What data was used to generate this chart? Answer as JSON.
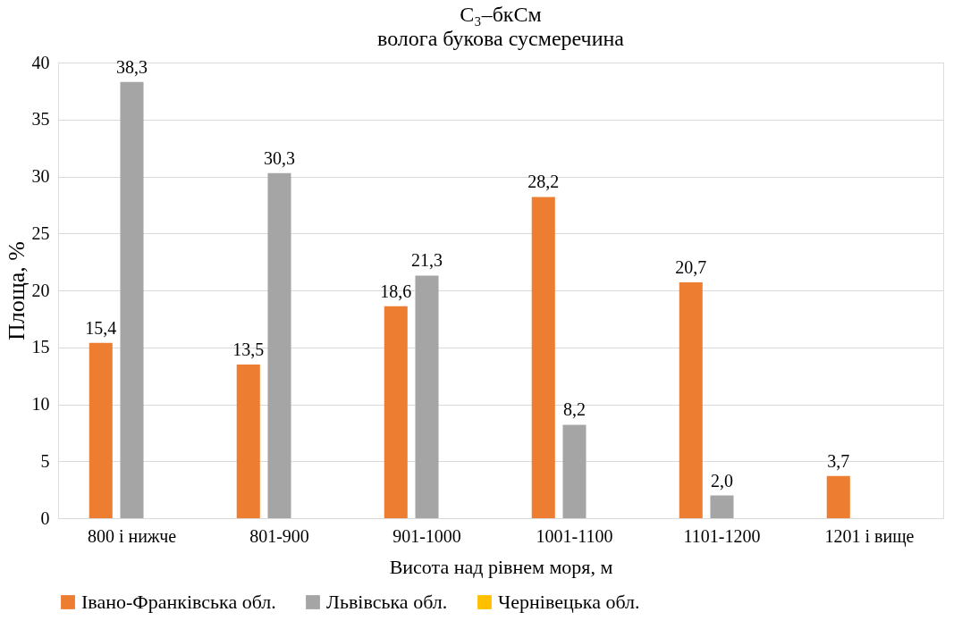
{
  "chart_data": {
    "type": "bar",
    "title": "C₃–бкСм",
    "subtitle": "волога букова сусмеречина",
    "xlabel": "Висота над рівнем моря, м",
    "ylabel": "Площа, %",
    "categories": [
      "800 і нижче",
      "801-900",
      "901-1000",
      "1001-1100",
      "1101-1200",
      "1201 і вище"
    ],
    "series": [
      {
        "name": "Івано-Франківська обл.",
        "color": "#ed7d31",
        "values": [
          15.4,
          13.5,
          18.6,
          28.2,
          20.7,
          3.7
        ],
        "value_labels": [
          "15,4",
          "13,5",
          "18,6",
          "28,2",
          "20,7",
          "3,7"
        ]
      },
      {
        "name": "Львівська обл.",
        "color": "#a5a5a5",
        "values": [
          38.3,
          30.3,
          21.3,
          8.2,
          2.0,
          null
        ],
        "value_labels": [
          "38,3",
          "30,3",
          "21,3",
          "8,2",
          "2,0",
          null
        ]
      },
      {
        "name": "Чернівецька обл.",
        "color": "#ffc000",
        "values": [
          null,
          null,
          null,
          null,
          null,
          null
        ],
        "value_labels": [
          null,
          null,
          null,
          null,
          null,
          null
        ]
      }
    ],
    "ylim": [
      0,
      40
    ],
    "yticks": [
      0,
      5,
      10,
      15,
      20,
      25,
      30,
      35,
      40
    ],
    "grid": "y",
    "legend": "bottom"
  }
}
